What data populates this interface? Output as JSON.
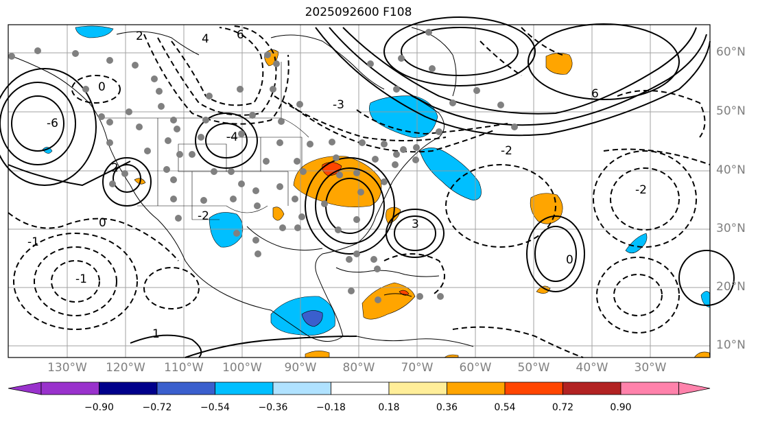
{
  "title": "2025092600 F108",
  "lon_labels": [
    "130°W",
    "120°W",
    "110°W",
    "100°W",
    "90°W",
    "80°W",
    "70°W",
    "60°W",
    "50°W",
    "40°W",
    "30°W"
  ],
  "lat_labels": [
    "60°N",
    "50°N",
    "40°N",
    "30°N",
    "20°N",
    "10°N"
  ],
  "colorbar": {
    "ticks": [
      "−0.90",
      "−0.72",
      "−0.54",
      "−0.36",
      "−0.18",
      "0.18",
      "0.36",
      "0.54",
      "0.72",
      "0.90"
    ],
    "colors": [
      "#9932cc",
      "#00008b",
      "#3a5fcd",
      "#00bfff",
      "#b0e2ff",
      "#ffffff",
      "#ffee99",
      "#ffa500",
      "#ff4500",
      "#b22222",
      "#ff82ab"
    ]
  },
  "contour_labels": [
    "6",
    "4",
    "2",
    "0",
    "-2",
    "-3",
    "-4",
    "-6",
    "2",
    "0",
    "-1",
    "-2",
    "3",
    "6",
    "-2",
    "0",
    "1",
    "-1"
  ],
  "colors": {
    "positive_fill": "#ffa500",
    "strong_positive_fill": "#ff4500",
    "negative_fill": "#00bfff",
    "strong_negative_fill": "#3a5fcd",
    "station_dot": "#808080",
    "grid": "#999999",
    "axis_label": "#7f7f7f"
  }
}
